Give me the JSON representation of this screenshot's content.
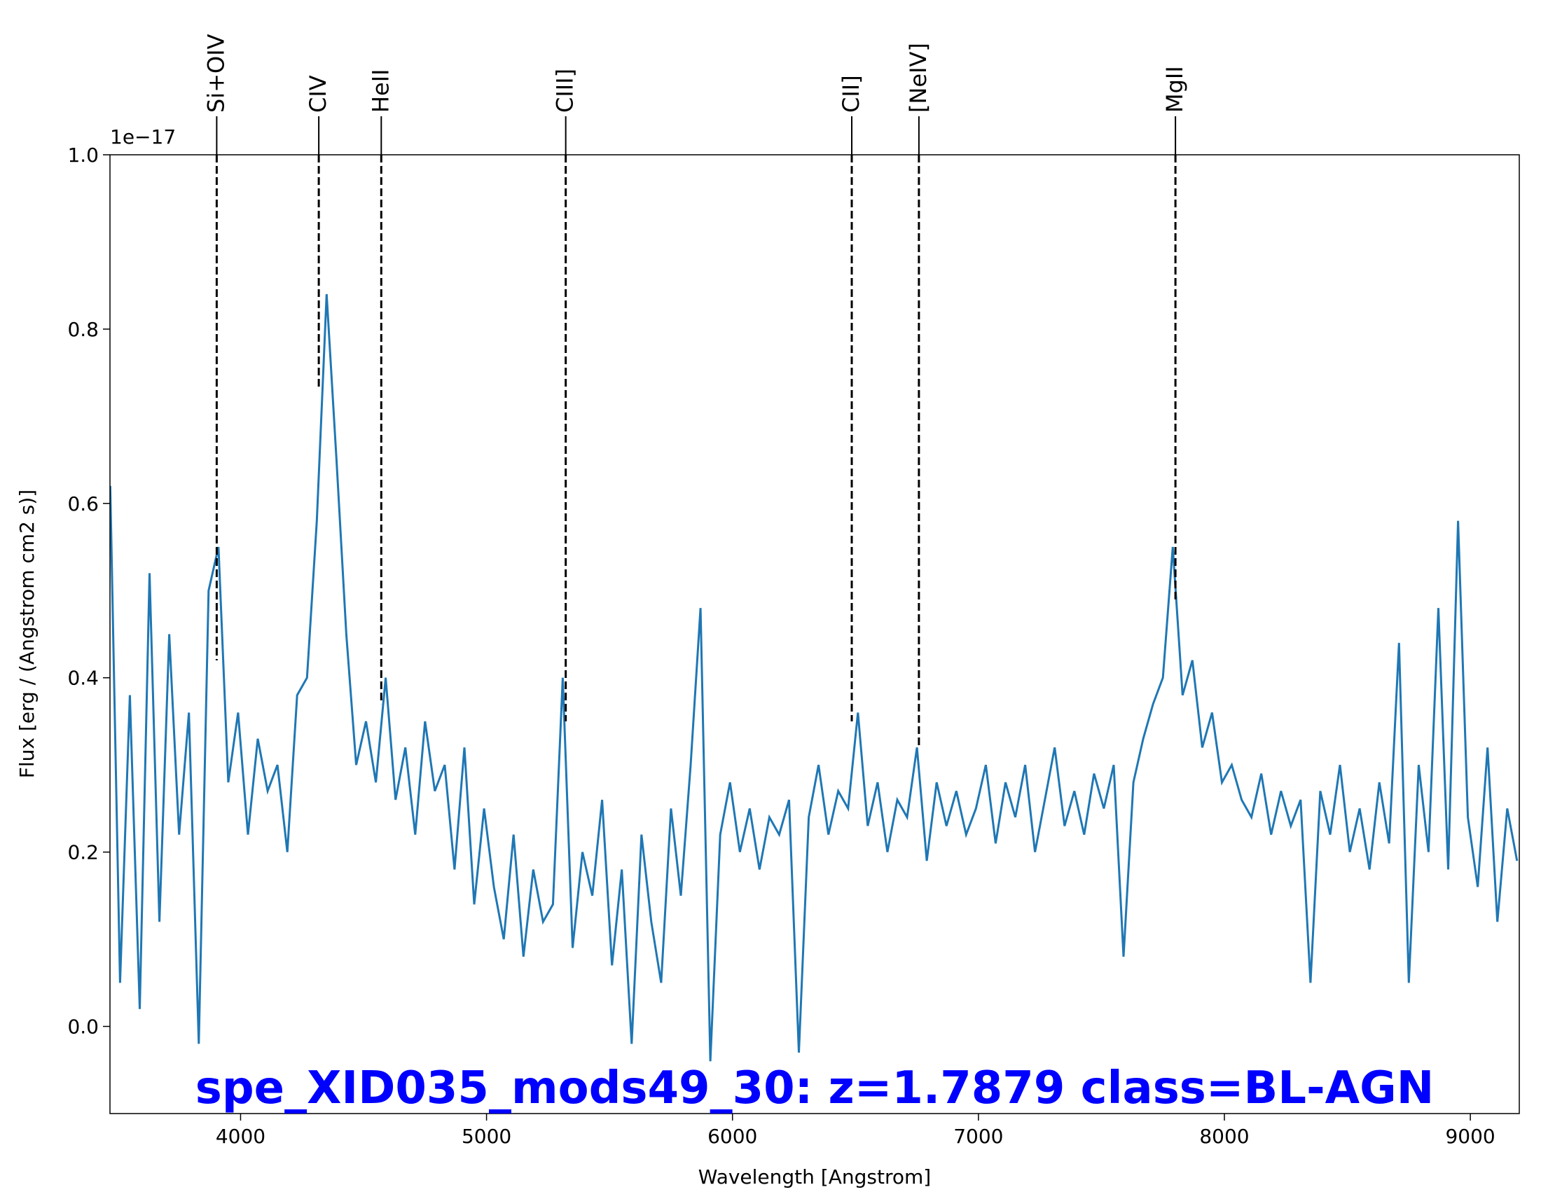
{
  "chart_data": {
    "type": "line",
    "title": "spe_XID035_mods49_30: z=1.7879 class=BL-AGN",
    "xlabel": "Wavelength [Angstrom]",
    "ylabel": "Flux [erg / (Angstrom cm2 s)]",
    "offset_text": "1e−17",
    "xlim": [
      3469,
      9199
    ],
    "ylim": [
      -0.1,
      1.0
    ],
    "xticks": [
      4000,
      5000,
      6000,
      7000,
      8000,
      9000
    ],
    "yticks": [
      {
        "value": 0,
        "label": "0.0"
      },
      0.2,
      0.4,
      0.6,
      0.8,
      {
        "value": 1,
        "label": "1.0"
      }
    ],
    "series": [
      {
        "color": "#1f77b4",
        "x": [
          3470,
          3510,
          3550,
          3590,
          3630,
          3670,
          3710,
          3750,
          3790,
          3830,
          3870,
          3910,
          3950,
          3990,
          4030,
          4070,
          4110,
          4150,
          4190,
          4230,
          4270,
          4310,
          4350,
          4390,
          4430,
          4470,
          4510,
          4550,
          4590,
          4630,
          4670,
          4710,
          4750,
          4790,
          4830,
          4870,
          4910,
          4950,
          4990,
          5030,
          5070,
          5110,
          5150,
          5190,
          5230,
          5270,
          5310,
          5350,
          5390,
          5430,
          5470,
          5510,
          5550,
          5590,
          5630,
          5670,
          5710,
          5750,
          5790,
          5830,
          5870,
          5910,
          5950,
          5990,
          6030,
          6070,
          6110,
          6150,
          6190,
          6230,
          6270,
          6310,
          6350,
          6390,
          6430,
          6470,
          6510,
          6550,
          6590,
          6630,
          6670,
          6710,
          6750,
          6790,
          6830,
          6870,
          6910,
          6950,
          6990,
          7030,
          7070,
          7110,
          7150,
          7190,
          7230,
          7270,
          7310,
          7350,
          7390,
          7430,
          7470,
          7510,
          7550,
          7590,
          7630,
          7670,
          7710,
          7750,
          7790,
          7830,
          7870,
          7910,
          7950,
          7990,
          8030,
          8070,
          8110,
          8150,
          8190,
          8230,
          8270,
          8310,
          8350,
          8390,
          8430,
          8470,
          8510,
          8550,
          8590,
          8630,
          8670,
          8710,
          8750,
          8790,
          8830,
          8870,
          8910,
          8950,
          8990,
          9030,
          9070,
          9110,
          9150,
          9190
        ],
        "values": [
          0.62,
          0.05,
          0.38,
          0.02,
          0.52,
          0.12,
          0.45,
          0.22,
          0.36,
          -0.02,
          0.5,
          0.55,
          0.28,
          0.36,
          0.22,
          0.33,
          0.27,
          0.3,
          0.2,
          0.38,
          0.4,
          0.58,
          0.84,
          0.65,
          0.45,
          0.3,
          0.35,
          0.28,
          0.4,
          0.26,
          0.32,
          0.22,
          0.35,
          0.27,
          0.3,
          0.18,
          0.32,
          0.14,
          0.25,
          0.16,
          0.1,
          0.22,
          0.08,
          0.18,
          0.12,
          0.14,
          0.4,
          0.09,
          0.2,
          0.15,
          0.26,
          0.07,
          0.18,
          -0.02,
          0.22,
          0.12,
          0.05,
          0.25,
          0.15,
          0.3,
          0.48,
          -0.04,
          0.22,
          0.28,
          0.2,
          0.25,
          0.18,
          0.24,
          0.22,
          0.26,
          -0.03,
          0.24,
          0.3,
          0.22,
          0.27,
          0.25,
          0.36,
          0.23,
          0.28,
          0.2,
          0.26,
          0.24,
          0.32,
          0.19,
          0.28,
          0.23,
          0.27,
          0.22,
          0.25,
          0.3,
          0.21,
          0.28,
          0.24,
          0.3,
          0.2,
          0.26,
          0.32,
          0.23,
          0.27,
          0.22,
          0.29,
          0.25,
          0.3,
          0.08,
          0.28,
          0.33,
          0.37,
          0.4,
          0.55,
          0.38,
          0.42,
          0.32,
          0.36,
          0.28,
          0.3,
          0.26,
          0.24,
          0.29,
          0.22,
          0.27,
          0.23,
          0.26,
          0.05,
          0.27,
          0.22,
          0.3,
          0.2,
          0.25,
          0.18,
          0.28,
          0.21,
          0.44,
          0.05,
          0.3,
          0.2,
          0.48,
          0.18,
          0.58,
          0.24,
          0.16,
          0.32,
          0.12,
          0.25,
          0.19
        ]
      }
    ],
    "lines": [
      {
        "label": "Si+OIV",
        "x": 3903,
        "y": 0.42
      },
      {
        "label": "CIV",
        "x": 4318,
        "y": 0.73
      },
      {
        "label": "HeII",
        "x": 4572,
        "y": 0.37
      },
      {
        "label": "CIII]",
        "x": 5322,
        "y": 0.35
      },
      {
        "label": "CII]",
        "x": 6485,
        "y": 0.35
      },
      {
        "label": "[NeIV]",
        "x": 6758,
        "y": 0.32
      },
      {
        "label": "MgII",
        "x": 7801,
        "y": 0.49
      }
    ]
  }
}
